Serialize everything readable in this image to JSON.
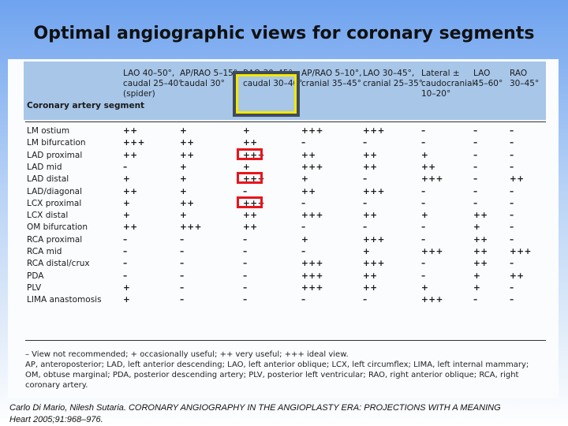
{
  "slide_title": "Optimal angiographic views for coronary segments",
  "table": {
    "segment_header": "Coronary artery segment",
    "columns": [
      "LAO 40–50°,\ncaudal 25–40°\n(spider)",
      "AP/RAO 5–15°\ncaudal 30°",
      "RAO 30–45°,\ncaudal 30–40°",
      "AP/RAO 5–10°,\ncranial 35–45°",
      "LAO 30–45°,\ncranial 25–35°",
      "Lateral ±\ncaudocranial\n10–20°",
      "LAO\n45–60°",
      "RAO\n30–45°"
    ],
    "rows": [
      {
        "segment": "LM ostium",
        "values": [
          "++",
          "+",
          "+",
          "+++",
          "+++",
          "–",
          "–",
          "–"
        ]
      },
      {
        "segment": "LM bifurcation",
        "values": [
          "+++",
          "++",
          "++",
          "–",
          "–",
          "–",
          "–",
          "–"
        ]
      },
      {
        "segment": "LAD proximal",
        "values": [
          "++",
          "++",
          "+++",
          "++",
          "++",
          "+",
          "–",
          "–"
        ]
      },
      {
        "segment": "LAD mid",
        "values": [
          "–",
          "+",
          "+",
          "+++",
          "++",
          "++",
          "–",
          "–"
        ]
      },
      {
        "segment": "LAD distal",
        "values": [
          "+",
          "+",
          "+++",
          "+",
          "–",
          "+++",
          "–",
          "++"
        ]
      },
      {
        "segment": "LAD/diagonal",
        "values": [
          "++",
          "+",
          "–",
          "++",
          "+++",
          "–",
          "–",
          "–"
        ]
      },
      {
        "segment": "LCX proximal",
        "values": [
          "+",
          "++",
          "+++",
          "–",
          "–",
          "–",
          "–",
          "–"
        ]
      },
      {
        "segment": "LCX distal",
        "values": [
          "+",
          "+",
          "++",
          "+++",
          "++",
          "+",
          "++",
          "–"
        ]
      },
      {
        "segment": "OM bifurcation",
        "values": [
          "++",
          "+++",
          "++",
          "–",
          "–",
          "–",
          "+",
          "–"
        ]
      },
      {
        "segment": "RCA proximal",
        "values": [
          "–",
          "–",
          "–",
          "+",
          "+++",
          "–",
          "++",
          "–"
        ]
      },
      {
        "segment": "RCA mid",
        "values": [
          "–",
          "–",
          "–",
          "–",
          "+",
          "+++",
          "++",
          "+++"
        ]
      },
      {
        "segment": "RCA distal/crux",
        "values": [
          "–",
          "–",
          "–",
          "+++",
          "+++",
          "–",
          "++",
          "–"
        ]
      },
      {
        "segment": "PDA",
        "values": [
          "–",
          "–",
          "–",
          "+++",
          "++",
          "–",
          "+",
          "++"
        ]
      },
      {
        "segment": "PLV",
        "values": [
          "+",
          "–",
          "–",
          "+++",
          "++",
          "+",
          "+",
          "–"
        ]
      },
      {
        "segment": "LIMA anastomosis",
        "values": [
          "+",
          "–",
          "–",
          "–",
          "–",
          "+++",
          "–",
          "–"
        ]
      }
    ],
    "highlighted_column": 2,
    "red_boxed_rows": [
      2,
      4,
      6
    ],
    "footnote": "– View not recommended; + occasionally useful; ++ very useful; +++ ideal view.\nAP, anteroposterior; LAD, left anterior descending; LAO, left anterior oblique; LCX, left circumflex; LIMA, left internal mammary; OM, obtuse marginal; PDA, posterior descending artery; PLV, posterior left ventricular; RAO, right anterior oblique; RCA, right coronary artery."
  },
  "citation": {
    "line1": "Carlo Di Mario, Nilesh Sutaria. CORONARY ANGIOGRAPHY IN THE ANGIOPLASTY ERA: PROJECTIONS WITH A MEANING",
    "line2": "Heart 2005;91:968–976."
  },
  "colors": {
    "header_band": "#a7c6e8",
    "highlight_border": "#f5e700",
    "red_box": "#e8151b"
  }
}
